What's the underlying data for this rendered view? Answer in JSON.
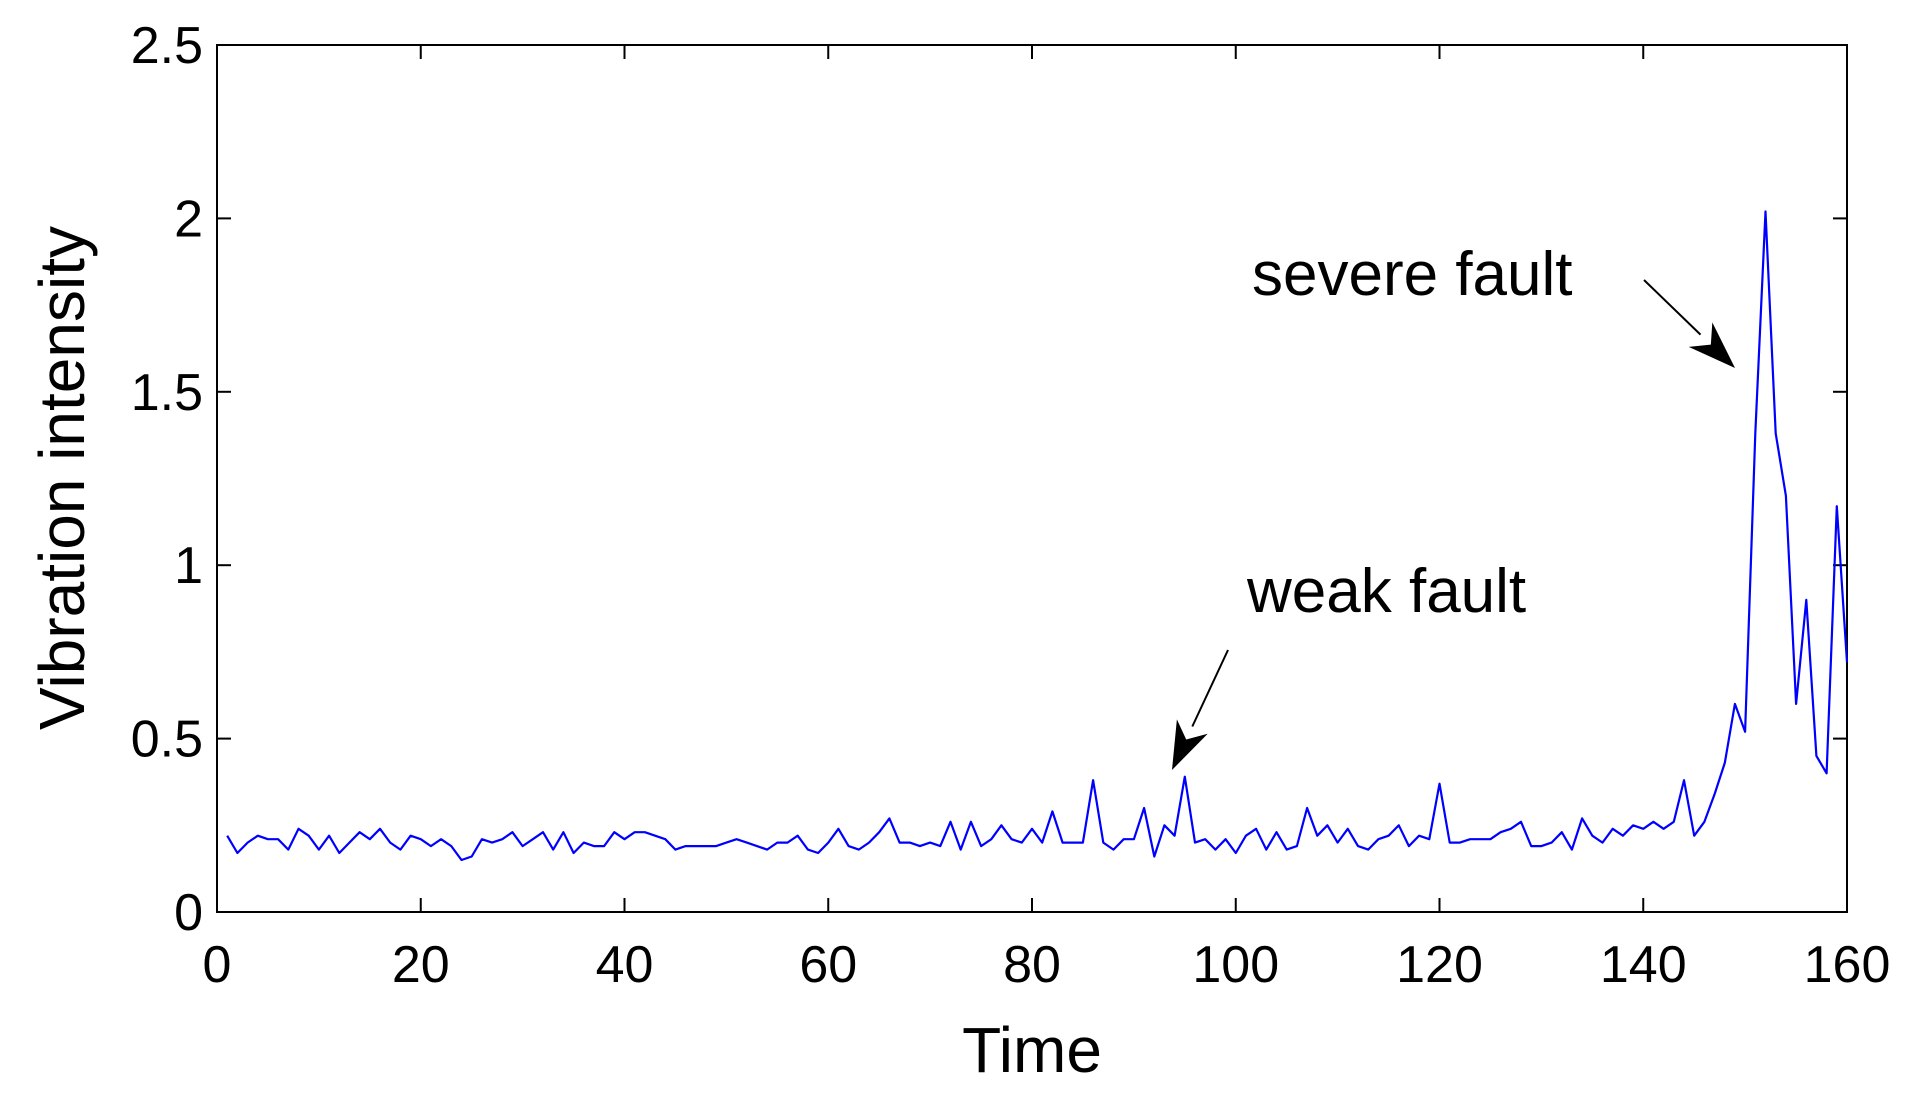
{
  "chart_data": {
    "type": "line",
    "title": "",
    "xlabel": "Time",
    "ylabel": "Vibration intensity",
    "xlim": [
      0,
      160
    ],
    "ylim": [
      0,
      2.5
    ],
    "x_ticks": [
      0,
      20,
      40,
      60,
      80,
      100,
      120,
      140,
      160
    ],
    "x_tick_labels": [
      "0",
      "20",
      "40",
      "60",
      "80",
      "100",
      "120",
      "140",
      "160"
    ],
    "y_ticks": [
      0,
      0.5,
      1,
      1.5,
      2,
      2.5
    ],
    "y_tick_labels": [
      "0",
      "0.5",
      "1",
      "1.5",
      "2",
      "2.5"
    ],
    "grid": false,
    "line_color": "#0000ff",
    "series": [
      {
        "x": [
          1,
          2,
          3,
          4,
          5,
          6,
          7,
          8,
          9,
          10,
          11,
          12,
          13,
          14,
          15,
          16,
          17,
          18,
          19,
          20,
          21,
          22,
          23,
          24,
          25,
          26,
          27,
          28,
          29,
          30,
          31,
          32,
          33,
          34,
          35,
          36,
          37,
          38,
          39,
          40,
          41,
          42,
          43,
          44,
          45,
          46,
          47,
          48,
          49,
          50,
          51,
          52,
          53,
          54,
          55,
          56,
          57,
          58,
          59,
          60,
          61,
          62,
          63,
          64,
          65,
          66,
          67,
          68,
          69,
          70,
          71,
          72,
          73,
          74,
          75,
          76,
          77,
          78,
          79,
          80,
          81,
          82,
          83,
          84,
          85,
          86,
          87,
          88,
          89,
          90,
          91,
          92,
          93,
          94,
          95,
          96,
          97,
          98,
          99,
          100,
          101,
          102,
          103,
          104,
          105,
          106,
          107,
          108,
          109,
          110,
          111,
          112,
          113,
          114,
          115,
          116,
          117,
          118,
          119,
          120,
          121,
          122,
          123,
          124,
          125,
          126,
          127,
          128,
          129,
          130,
          131,
          132,
          133,
          134,
          135,
          136,
          137,
          138,
          139,
          140,
          141,
          142,
          143,
          144,
          145,
          146,
          147,
          148,
          149,
          150,
          151,
          152,
          153,
          154,
          155,
          156,
          157,
          158,
          159,
          160
        ],
        "y": [
          0.22,
          0.17,
          0.2,
          0.22,
          0.21,
          0.21,
          0.18,
          0.24,
          0.22,
          0.18,
          0.22,
          0.17,
          0.2,
          0.23,
          0.21,
          0.24,
          0.2,
          0.18,
          0.22,
          0.21,
          0.19,
          0.21,
          0.19,
          0.15,
          0.16,
          0.21,
          0.2,
          0.21,
          0.23,
          0.19,
          0.21,
          0.23,
          0.18,
          0.23,
          0.17,
          0.2,
          0.19,
          0.19,
          0.23,
          0.21,
          0.23,
          0.23,
          0.22,
          0.21,
          0.18,
          0.19,
          0.19,
          0.19,
          0.19,
          0.2,
          0.21,
          0.2,
          0.19,
          0.18,
          0.2,
          0.2,
          0.22,
          0.18,
          0.17,
          0.2,
          0.24,
          0.19,
          0.18,
          0.2,
          0.23,
          0.27,
          0.2,
          0.2,
          0.19,
          0.2,
          0.19,
          0.26,
          0.18,
          0.26,
          0.19,
          0.21,
          0.25,
          0.21,
          0.2,
          0.24,
          0.2,
          0.29,
          0.2,
          0.2,
          0.2,
          0.38,
          0.2,
          0.18,
          0.21,
          0.21,
          0.3,
          0.16,
          0.25,
          0.22,
          0.39,
          0.2,
          0.21,
          0.18,
          0.21,
          0.17,
          0.22,
          0.24,
          0.18,
          0.23,
          0.18,
          0.19,
          0.3,
          0.22,
          0.25,
          0.2,
          0.24,
          0.19,
          0.18,
          0.21,
          0.22,
          0.25,
          0.19,
          0.22,
          0.21,
          0.37,
          0.2,
          0.2,
          0.21,
          0.21,
          0.21,
          0.23,
          0.24,
          0.26,
          0.19,
          0.19,
          0.2,
          0.23,
          0.18,
          0.27,
          0.22,
          0.2,
          0.24,
          0.22,
          0.25,
          0.24,
          0.26,
          0.24,
          0.26,
          0.38,
          0.22,
          0.26,
          0.34,
          0.43,
          0.6,
          0.52,
          1.38,
          2.02,
          1.38,
          1.2,
          0.6,
          0.9,
          0.45,
          0.4,
          1.17,
          0.72
        ]
      }
    ],
    "annotations": [
      {
        "text": "weak fault",
        "x": 93,
        "y": 0.39
      },
      {
        "text": "severe fault",
        "x": 148,
        "y": 1.55
      }
    ]
  }
}
